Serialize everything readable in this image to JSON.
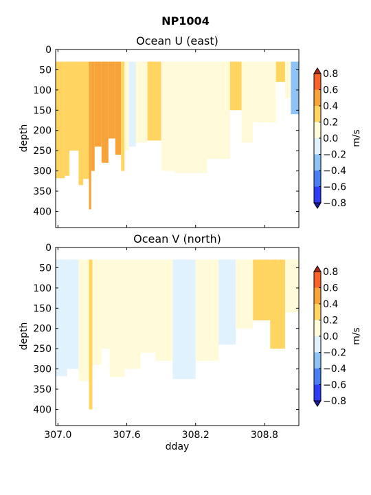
{
  "figure_title": "NP1004",
  "chart_data": [
    {
      "type": "heatmap",
      "title": "Ocean U (east)",
      "ylabel": "depth",
      "xlabel": "",
      "xlim": [
        306.98,
        309.1
      ],
      "ylim": [
        440,
        0
      ],
      "xticks": [
        "307.0",
        "307.6",
        "308.2",
        "308.8"
      ],
      "yticks": [
        "0",
        "50",
        "100",
        "150",
        "200",
        "250",
        "300",
        "350",
        "400"
      ],
      "colorbar": {
        "label": "m/s",
        "ticks": [
          "0.8",
          "0.6",
          "0.4",
          "0.2",
          "0.0",
          "−0.2",
          "−0.4",
          "−0.6",
          "−0.8"
        ],
        "levels": [
          -0.8,
          -0.6,
          -0.4,
          -0.2,
          0.0,
          0.2,
          0.4,
          0.6,
          0.8
        ],
        "colors": [
          "#2f3cf5",
          "#4a7ef5",
          "#8ec3f7",
          "#e0f2fd",
          "#fffbd8",
          "#ffd460",
          "#f6a43a",
          "#f7622a"
        ]
      },
      "top_depth": 30,
      "regions": [
        {
          "x0": 306.98,
          "x1": 307.06,
          "bottom": 318,
          "value": 0.3
        },
        {
          "x0": 307.06,
          "x1": 307.1,
          "bottom": 312,
          "value": 0.3
        },
        {
          "x0": 307.1,
          "x1": 307.18,
          "bottom": 250,
          "value": 0.3
        },
        {
          "x0": 307.18,
          "x1": 307.22,
          "bottom": 335,
          "value": 0.3
        },
        {
          "x0": 307.22,
          "x1": 307.27,
          "bottom": 320,
          "value": 0.3
        },
        {
          "x0": 307.27,
          "x1": 307.29,
          "bottom": 395,
          "value": 0.5
        },
        {
          "x0": 307.29,
          "x1": 307.32,
          "bottom": 300,
          "value": 0.5
        },
        {
          "x0": 307.32,
          "x1": 307.38,
          "bottom": 240,
          "value": 0.5
        },
        {
          "x0": 307.38,
          "x1": 307.44,
          "bottom": 280,
          "value": 0.5
        },
        {
          "x0": 307.44,
          "x1": 307.5,
          "bottom": 220,
          "value": 0.5
        },
        {
          "x0": 307.5,
          "x1": 307.55,
          "bottom": 260,
          "value": 0.5
        },
        {
          "x0": 307.55,
          "x1": 307.58,
          "bottom": 300,
          "value": 0.3
        },
        {
          "x0": 307.58,
          "x1": 307.62,
          "bottom": 250,
          "value": 0.1
        },
        {
          "x0": 307.62,
          "x1": 307.68,
          "bottom": 240,
          "value": -0.1
        },
        {
          "x0": 307.68,
          "x1": 307.78,
          "bottom": 230,
          "value": 0.1
        },
        {
          "x0": 307.78,
          "x1": 307.9,
          "bottom": 225,
          "value": 0.3
        },
        {
          "x0": 307.9,
          "x1": 308.02,
          "bottom": 300,
          "value": 0.1
        },
        {
          "x0": 308.02,
          "x1": 308.3,
          "bottom": 305,
          "value": 0.1
        },
        {
          "x0": 308.3,
          "x1": 308.5,
          "bottom": 270,
          "value": 0.1
        },
        {
          "x0": 308.5,
          "x1": 308.6,
          "bottom": 150,
          "value": 0.3
        },
        {
          "x0": 308.6,
          "x1": 308.7,
          "bottom": 230,
          "value": 0.1
        },
        {
          "x0": 308.7,
          "x1": 308.9,
          "bottom": 180,
          "value": 0.1
        },
        {
          "x0": 308.9,
          "x1": 308.98,
          "bottom": 80,
          "value": 0.3
        },
        {
          "x0": 308.98,
          "x1": 309.03,
          "bottom": 120,
          "value": 0.1
        },
        {
          "x0": 309.03,
          "x1": 309.1,
          "bottom": 160,
          "value": -0.3
        }
      ]
    },
    {
      "type": "heatmap",
      "title": "Ocean V (north)",
      "ylabel": "depth",
      "xlabel": "dday",
      "xlim": [
        306.98,
        309.1
      ],
      "ylim": [
        440,
        0
      ],
      "xticks": [
        "307.0",
        "307.6",
        "308.2",
        "308.8"
      ],
      "yticks": [
        "0",
        "50",
        "100",
        "150",
        "200",
        "250",
        "300",
        "350",
        "400"
      ],
      "colorbar": {
        "label": "m/s",
        "ticks": [
          "0.8",
          "0.6",
          "0.4",
          "0.2",
          "0.0",
          "−0.2",
          "−0.4",
          "−0.6",
          "−0.8"
        ],
        "levels": [
          -0.8,
          -0.6,
          -0.4,
          -0.2,
          0.0,
          0.2,
          0.4,
          0.6,
          0.8
        ],
        "colors": [
          "#2f3cf5",
          "#4a7ef5",
          "#8ec3f7",
          "#e0f2fd",
          "#fffbd8",
          "#ffd460",
          "#f6a43a",
          "#f7622a"
        ]
      },
      "top_depth": 30,
      "regions": [
        {
          "x0": 306.98,
          "x1": 307.08,
          "bottom": 318,
          "value": -0.1
        },
        {
          "x0": 307.08,
          "x1": 307.18,
          "bottom": 300,
          "value": -0.1
        },
        {
          "x0": 307.18,
          "x1": 307.27,
          "bottom": 330,
          "value": 0.1
        },
        {
          "x0": 307.27,
          "x1": 307.3,
          "bottom": 400,
          "value": 0.3
        },
        {
          "x0": 307.3,
          "x1": 307.38,
          "bottom": 290,
          "value": 0.1
        },
        {
          "x0": 307.38,
          "x1": 307.45,
          "bottom": 250,
          "value": 0.1
        },
        {
          "x0": 307.45,
          "x1": 307.58,
          "bottom": 320,
          "value": 0.1
        },
        {
          "x0": 307.58,
          "x1": 307.72,
          "bottom": 300,
          "value": 0.1
        },
        {
          "x0": 307.72,
          "x1": 307.85,
          "bottom": 260,
          "value": 0.1
        },
        {
          "x0": 307.85,
          "x1": 308.0,
          "bottom": 280,
          "value": 0.1
        },
        {
          "x0": 308.0,
          "x1": 308.2,
          "bottom": 325,
          "value": -0.1
        },
        {
          "x0": 308.2,
          "x1": 308.4,
          "bottom": 280,
          "value": 0.1
        },
        {
          "x0": 308.4,
          "x1": 308.55,
          "bottom": 240,
          "value": -0.1
        },
        {
          "x0": 308.55,
          "x1": 308.7,
          "bottom": 200,
          "value": 0.1
        },
        {
          "x0": 308.7,
          "x1": 308.85,
          "bottom": 180,
          "value": 0.3
        },
        {
          "x0": 308.85,
          "x1": 308.98,
          "bottom": 250,
          "value": 0.3
        },
        {
          "x0": 308.98,
          "x1": 309.1,
          "bottom": 160,
          "value": 0.1
        }
      ]
    }
  ]
}
